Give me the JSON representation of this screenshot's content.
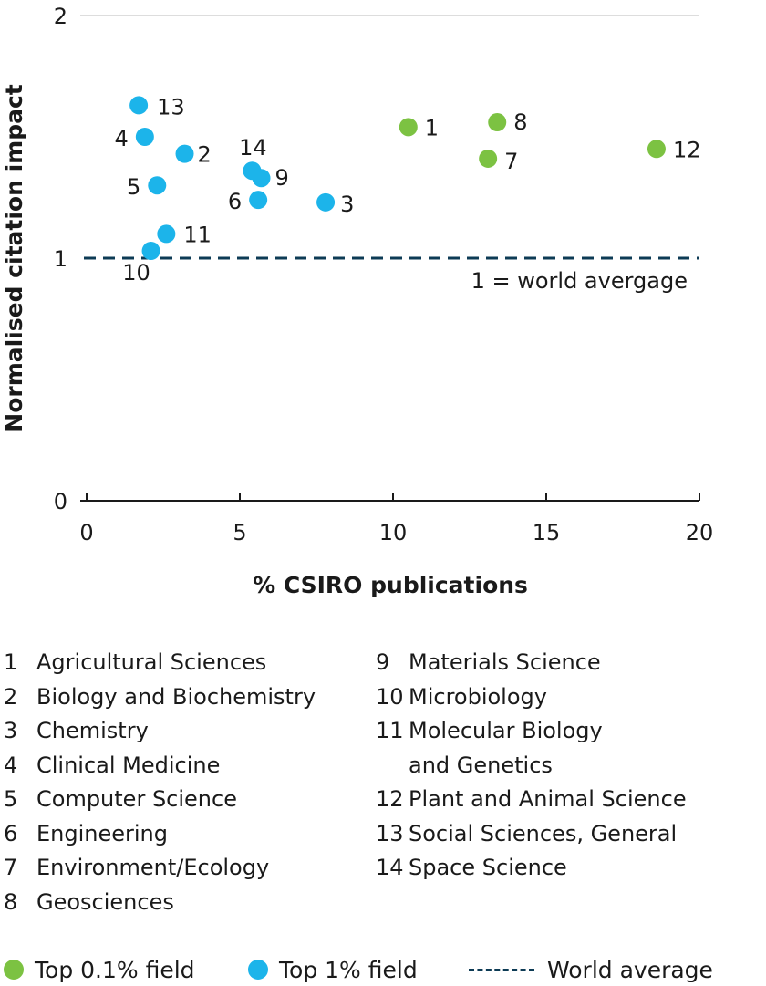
{
  "chart_data": {
    "type": "scatter",
    "xlabel": "% CSIRO publications",
    "ylabel": "Normalised citation impact",
    "xlim": [
      0,
      20
    ],
    "ylim": [
      0,
      2
    ],
    "x_ticks": [
      0,
      5,
      10,
      15,
      20
    ],
    "y_ticks": [
      0,
      1,
      2
    ],
    "grid": "top border only",
    "reference_line": {
      "y": 1,
      "label": "1 = world avergage",
      "style": "dashed",
      "color": "#0d3b55"
    },
    "series": [
      {
        "name": "Top 0.1% field",
        "color": "#7cc242",
        "points": [
          {
            "id": "1",
            "x": 10.5,
            "y": 1.54
          },
          {
            "id": "8",
            "x": 13.4,
            "y": 1.56
          },
          {
            "id": "7",
            "x": 13.1,
            "y": 1.41
          },
          {
            "id": "12",
            "x": 18.6,
            "y": 1.45
          }
        ]
      },
      {
        "name": "Top 1% field",
        "color": "#1cb4ea",
        "points": [
          {
            "id": "13",
            "x": 1.7,
            "y": 1.63
          },
          {
            "id": "4",
            "x": 1.9,
            "y": 1.5
          },
          {
            "id": "2",
            "x": 3.2,
            "y": 1.43
          },
          {
            "id": "5",
            "x": 2.3,
            "y": 1.3
          },
          {
            "id": "14",
            "x": 5.4,
            "y": 1.36
          },
          {
            "id": "9",
            "x": 5.7,
            "y": 1.33
          },
          {
            "id": "6",
            "x": 5.6,
            "y": 1.24
          },
          {
            "id": "3",
            "x": 7.8,
            "y": 1.23
          },
          {
            "id": "11",
            "x": 2.6,
            "y": 1.1
          },
          {
            "id": "10",
            "x": 2.1,
            "y": 1.03
          }
        ]
      }
    ]
  },
  "fields_left": [
    {
      "num": "1",
      "label": "Agricultural Sciences"
    },
    {
      "num": "2",
      "label": "Biology and Biochemistry"
    },
    {
      "num": "3",
      "label": "Chemistry"
    },
    {
      "num": "4",
      "label": "Clinical Medicine"
    },
    {
      "num": "5",
      "label": "Computer Science"
    },
    {
      "num": "6",
      "label": "Engineering"
    },
    {
      "num": "7",
      "label": "Environment/Ecology"
    },
    {
      "num": "8",
      "label": "Geosciences"
    }
  ],
  "fields_right": [
    {
      "num": "9",
      "label": "Materials Science"
    },
    {
      "num": "10",
      "label": "Microbiology"
    },
    {
      "num": "11",
      "label": "Molecular Biology\nand Genetics"
    },
    {
      "num": "12",
      "label": "Plant and Animal Science"
    },
    {
      "num": "13",
      "label": "Social Sciences, General"
    },
    {
      "num": "14",
      "label": "Space Science"
    }
  ],
  "key": {
    "top01": "Top 0.1% field",
    "top1": "Top 1% field",
    "world": "World average"
  }
}
